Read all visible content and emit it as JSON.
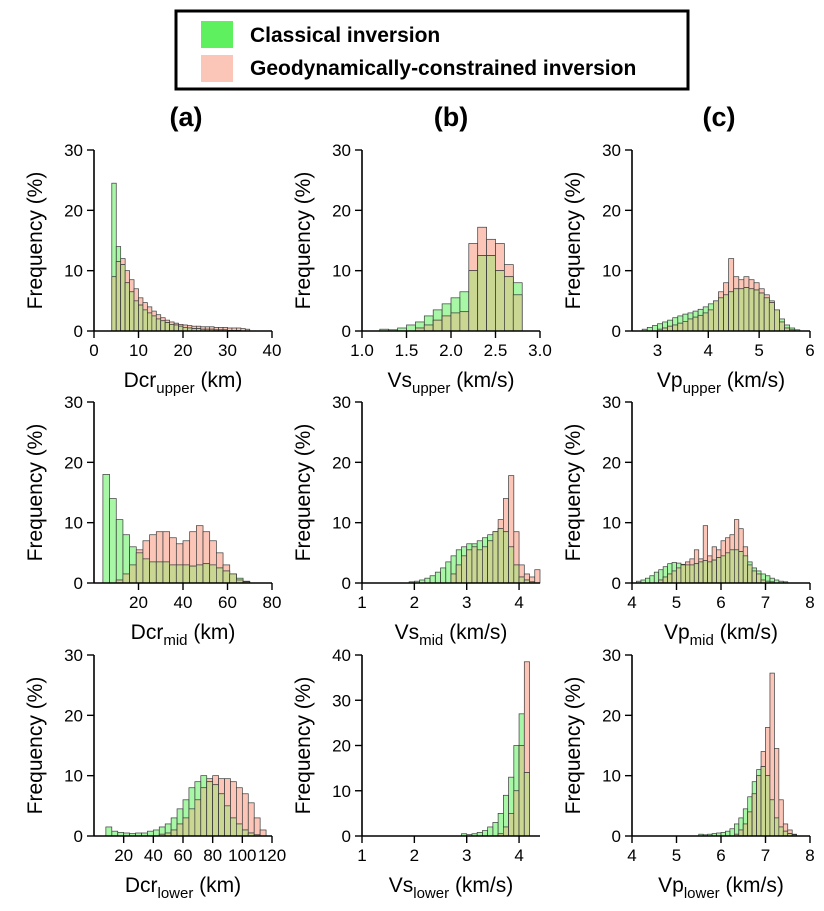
{
  "legend": {
    "entries": [
      {
        "label": "Classical inversion",
        "color": "#5ef05e"
      },
      {
        "label": "Geodynamically-constrained inversion",
        "color": "#fbc6b8"
      }
    ]
  },
  "colors": {
    "classical": "#5ef05e",
    "geodynamic": "#fbc6b8",
    "overlap": "#c9d792"
  },
  "column_labels": [
    "(a)",
    "(b)",
    "(c)"
  ],
  "chart_data": [
    {
      "type": "bar",
      "panel": "a-upper",
      "ylabel": "Frequency (%)",
      "xlabel_main": "Dcr",
      "xlabel_sub": "upper",
      "xlabel_unit": " (km)",
      "xlim": [
        0,
        40
      ],
      "ylim": [
        0,
        30
      ],
      "xticks": [
        0,
        10,
        20,
        30,
        40
      ],
      "xtick_labels": [
        "0",
        "10",
        "20",
        "30",
        "40"
      ],
      "yticks": [
        0,
        10,
        20,
        30
      ],
      "ytick_labels": [
        "0",
        "10",
        "20",
        "30"
      ],
      "bin_start": 4,
      "bin_width": 1,
      "series": [
        {
          "name": "Classical inversion",
          "values": [
            24.5,
            14,
            11,
            8,
            6.5,
            5,
            4.3,
            3.5,
            3,
            2.5,
            2,
            1.7,
            1.4,
            1.1,
            1,
            0.8,
            0.6,
            0.5,
            0.4,
            0.4,
            0.3,
            0.3,
            0.3,
            0.2,
            0.2,
            0.2,
            0.1,
            0.1,
            0.1,
            0,
            0
          ]
        },
        {
          "name": "Geodynamically-constrained inversion",
          "values": [
            9,
            11.5,
            12,
            10,
            8.5,
            7,
            5.5,
            4.7,
            4,
            3.3,
            2.7,
            2.2,
            1.8,
            1.5,
            1.3,
            1.1,
            1,
            0.9,
            0.8,
            0.8,
            0.7,
            0.7,
            0.7,
            0.6,
            0.6,
            0.6,
            0.5,
            0.5,
            0.5,
            0.4,
            0.3
          ]
        }
      ]
    },
    {
      "type": "bar",
      "panel": "b-upper",
      "ylabel": "Frequency (%)",
      "xlabel_main": "Vs",
      "xlabel_sub": "upper",
      "xlabel_unit": " (km/s)",
      "xlim": [
        1.0,
        3.0
      ],
      "ylim": [
        0,
        30
      ],
      "xticks": [
        1.0,
        1.5,
        2.0,
        2.5,
        3.0
      ],
      "xtick_labels": [
        "1.0",
        "1.5",
        "2.0",
        "2.5",
        "3.0"
      ],
      "yticks": [
        0,
        10,
        20,
        30
      ],
      "ytick_labels": [
        "0",
        "10",
        "20",
        "30"
      ],
      "bin_start": 1.2,
      "bin_width": 0.1,
      "series": [
        {
          "name": "Classical inversion",
          "values": [
            0.3,
            0.2,
            0.5,
            1,
            1.5,
            2.5,
            3.5,
            4.5,
            5.5,
            6.5,
            10,
            12.5,
            12.5,
            10,
            9,
            8
          ]
        },
        {
          "name": "Geodynamically-constrained inversion",
          "values": [
            0,
            0,
            0,
            0,
            0.5,
            1,
            1.8,
            2.5,
            3,
            3.2,
            14.5,
            17.2,
            15.2,
            14.5,
            11,
            6
          ]
        }
      ]
    },
    {
      "type": "bar",
      "panel": "c-upper",
      "ylabel": "Frequency (%)",
      "xlabel_main": "Vp",
      "xlabel_sub": "upper",
      "xlabel_unit": " (km/s)",
      "xlim": [
        2.5,
        6.0
      ],
      "ylim": [
        0,
        30
      ],
      "xticks": [
        3,
        4,
        5,
        6
      ],
      "xtick_labels": [
        "3",
        "4",
        "5",
        "6"
      ],
      "yticks": [
        0,
        10,
        20,
        30
      ],
      "ytick_labels": [
        "0",
        "10",
        "20",
        "30"
      ],
      "bin_start": 2.7,
      "bin_width": 0.1,
      "series": [
        {
          "name": "Classical inversion",
          "values": [
            0.3,
            0.6,
            0.9,
            1.2,
            1.5,
            1.8,
            2.2,
            2.5,
            2.8,
            3,
            3.3,
            3.6,
            4,
            4.5,
            5,
            5.5,
            6,
            6.5,
            7,
            7,
            7.2,
            7,
            6.8,
            6.3,
            5.5,
            4.7,
            3.5,
            2,
            1,
            0.5,
            0.2
          ]
        },
        {
          "name": "Geodynamically-constrained inversion",
          "values": [
            0,
            0,
            0,
            0.3,
            0.5,
            0.8,
            1,
            1.3,
            1.6,
            2,
            2.3,
            2.6,
            3,
            3.5,
            5,
            6.5,
            8,
            12,
            9,
            8.5,
            9,
            8.5,
            8,
            7,
            6,
            5,
            3.5,
            1.5,
            0.5,
            0.2,
            0
          ]
        }
      ]
    },
    {
      "type": "bar",
      "panel": "a-mid",
      "ylabel": "Frequency (%)",
      "xlabel_main": "Dcr",
      "xlabel_sub": "mid",
      "xlabel_unit": " (km)",
      "xlim": [
        0,
        80
      ],
      "ylim": [
        0,
        30
      ],
      "xticks": [
        20,
        40,
        60,
        80
      ],
      "xtick_labels": [
        "20",
        "40",
        "60",
        "80"
      ],
      "yticks": [
        0,
        10,
        20,
        30
      ],
      "ytick_labels": [
        "0",
        "10",
        "20",
        "30"
      ],
      "bin_start": 4,
      "bin_width": 3,
      "series": [
        {
          "name": "Classical inversion",
          "values": [
            18,
            14,
            10.5,
            8,
            6,
            5,
            4,
            3.5,
            3.5,
            3.5,
            3,
            3,
            3,
            2.8,
            3,
            3.2,
            3,
            2.5,
            2,
            1.5,
            0.8,
            0.3
          ]
        },
        {
          "name": "Geodynamically-constrained inversion",
          "values": [
            0,
            0,
            0.5,
            1.5,
            3,
            5.5,
            7,
            8,
            8.5,
            8.5,
            7.5,
            6.5,
            7,
            8.5,
            9.5,
            8.5,
            7,
            5,
            3,
            1.5,
            0.5,
            0.2
          ]
        }
      ]
    },
    {
      "type": "bar",
      "panel": "b-mid",
      "ylabel": "Frequency (%)",
      "xlabel_main": "Vs",
      "xlabel_sub": "mid",
      "xlabel_unit": " (km/s)",
      "xlim": [
        1.0,
        4.4
      ],
      "ylim": [
        0,
        30
      ],
      "xticks": [
        1,
        2,
        3,
        4
      ],
      "xtick_labels": [
        "1",
        "2",
        "3",
        "4"
      ],
      "yticks": [
        0,
        10,
        20,
        30
      ],
      "ytick_labels": [
        "0",
        "10",
        "20",
        "30"
      ],
      "bin_start": 1.9,
      "bin_width": 0.1,
      "series": [
        {
          "name": "Classical inversion",
          "values": [
            0.2,
            0.3,
            0.5,
            0.8,
            1.2,
            1.8,
            2.5,
            3.5,
            4.5,
            5.5,
            6,
            6.5,
            6.5,
            7,
            7.5,
            8,
            8.5,
            9,
            8.5,
            6,
            3,
            1,
            0.5,
            0.2,
            0
          ]
        },
        {
          "name": "Geodynamically-constrained inversion",
          "values": [
            0,
            0,
            0,
            0,
            0,
            0,
            0,
            0,
            1.5,
            3,
            4.5,
            5.5,
            6,
            5.5,
            6,
            7,
            8.5,
            10.5,
            14,
            17.8,
            8.5,
            3,
            1.5,
            1,
            2.2
          ]
        }
      ]
    },
    {
      "type": "bar",
      "panel": "c-mid",
      "ylabel": "Frequency (%)",
      "xlabel_main": "Vp",
      "xlabel_sub": "mid",
      "xlabel_unit": " (km/s)",
      "xlim": [
        4,
        8
      ],
      "ylim": [
        0,
        30
      ],
      "xticks": [
        4,
        5,
        6,
        7,
        8
      ],
      "xtick_labels": [
        "4",
        "5",
        "6",
        "7",
        "8"
      ],
      "yticks": [
        0,
        10,
        20,
        30
      ],
      "ytick_labels": [
        "0",
        "10",
        "20",
        "30"
      ],
      "bin_start": 4.1,
      "bin_width": 0.1,
      "series": [
        {
          "name": "Classical inversion",
          "values": [
            0.3,
            0.5,
            0.8,
            1.2,
            1.8,
            2.2,
            2.7,
            3.2,
            3.4,
            3.3,
            3.1,
            3,
            3,
            3.2,
            3.5,
            3.7,
            3.5,
            3.8,
            4.2,
            4.5,
            5,
            5.5,
            5.5,
            5.2,
            4.5,
            3.5,
            2.5,
            2,
            1.5,
            1.2,
            0.8,
            0.5,
            0.3,
            0.2
          ]
        },
        {
          "name": "Geodynamically-constrained inversion",
          "values": [
            0,
            0,
            0,
            0,
            0,
            0.5,
            1,
            1.5,
            2,
            2.5,
            3,
            3.5,
            4,
            5.5,
            4,
            9.5,
            4.5,
            6,
            5.5,
            7,
            7.5,
            8,
            10.5,
            9,
            6,
            3,
            2,
            1.5,
            0.5,
            0.3,
            0.2,
            0,
            0,
            0
          ]
        }
      ]
    },
    {
      "type": "bar",
      "panel": "a-lower",
      "ylabel": "Frequency (%)",
      "xlabel_main": "Dcr",
      "xlabel_sub": "lower",
      "xlabel_unit": " (km)",
      "xlim": [
        0,
        120
      ],
      "ylim": [
        0,
        30
      ],
      "xticks": [
        20,
        40,
        60,
        80,
        100,
        120
      ],
      "xtick_labels": [
        "20",
        "40",
        "60",
        "80",
        "100",
        "120"
      ],
      "yticks": [
        0,
        10,
        20,
        30
      ],
      "ytick_labels": [
        "0",
        "10",
        "20",
        "30"
      ],
      "bin_start": 8,
      "bin_width": 4,
      "series": [
        {
          "name": "Classical inversion",
          "values": [
            1.5,
            0.8,
            0.6,
            0.5,
            0.4,
            0.5,
            0.5,
            0.8,
            1,
            1.5,
            2,
            3,
            4.5,
            6,
            8,
            9,
            10,
            9,
            8.5,
            7,
            5,
            3,
            2,
            1,
            0.5,
            0.2,
            0
          ]
        },
        {
          "name": "Geodynamically-constrained inversion",
          "values": [
            0,
            0,
            0,
            0,
            0,
            0,
            0,
            0,
            0,
            0.3,
            0.5,
            1,
            2,
            3,
            4.5,
            6,
            8,
            9.5,
            10,
            9.5,
            9.5,
            9,
            8,
            7,
            5.5,
            3,
            1
          ]
        }
      ]
    },
    {
      "type": "bar",
      "panel": "b-lower",
      "ylabel": "Frequency (%)",
      "xlabel_main": "Vs",
      "xlabel_sub": "lower",
      "xlabel_unit": " (km/s)",
      "xlim": [
        1.0,
        4.4
      ],
      "ylim": [
        0,
        40
      ],
      "xticks": [
        1,
        2,
        3,
        4
      ],
      "xtick_labels": [
        "1",
        "2",
        "3",
        "4"
      ],
      "yticks": [
        0,
        10,
        20,
        30,
        40
      ],
      "ytick_labels": [
        "0",
        "10",
        "20",
        "30",
        "40"
      ],
      "bin_start": 2.9,
      "bin_width": 0.1,
      "series": [
        {
          "name": "Classical inversion",
          "values": [
            0.5,
            0.3,
            0.5,
            0.8,
            1.2,
            2,
            3,
            5,
            9,
            13,
            20,
            27,
            14,
            0,
            0
          ]
        },
        {
          "name": "Geodynamically-constrained inversion",
          "values": [
            0,
            0,
            0,
            0,
            0,
            0,
            0,
            0.5,
            2,
            5,
            10,
            20,
            38.5,
            0,
            0
          ]
        }
      ]
    },
    {
      "type": "bar",
      "panel": "c-lower",
      "ylabel": "Frequency (%)",
      "xlabel_main": "Vp",
      "xlabel_sub": "lower",
      "xlabel_unit": " (km/s)",
      "xlim": [
        4,
        8
      ],
      "ylim": [
        0,
        30
      ],
      "xticks": [
        4,
        5,
        6,
        7,
        8
      ],
      "xtick_labels": [
        "4",
        "5",
        "6",
        "7",
        "8"
      ],
      "yticks": [
        0,
        10,
        20,
        30
      ],
      "ytick_labels": [
        "0",
        "10",
        "20",
        "30"
      ],
      "bin_start": 5.5,
      "bin_width": 0.1,
      "series": [
        {
          "name": "Classical inversion",
          "values": [
            0.3,
            0.2,
            0.3,
            0.4,
            0.5,
            0.6,
            0.8,
            1.2,
            2,
            3,
            4.5,
            6.5,
            9,
            11,
            11.5,
            10,
            6,
            3,
            1.5,
            0.8,
            0.4,
            0.2,
            0,
            0,
            0
          ]
        },
        {
          "name": "Geodynamically-constrained inversion",
          "values": [
            0,
            0,
            0,
            0,
            0,
            0,
            0,
            0,
            0.3,
            1,
            2,
            4,
            7,
            10,
            14,
            18,
            27,
            14.5,
            6,
            2,
            1,
            0.3,
            0,
            0,
            0
          ]
        }
      ]
    }
  ]
}
